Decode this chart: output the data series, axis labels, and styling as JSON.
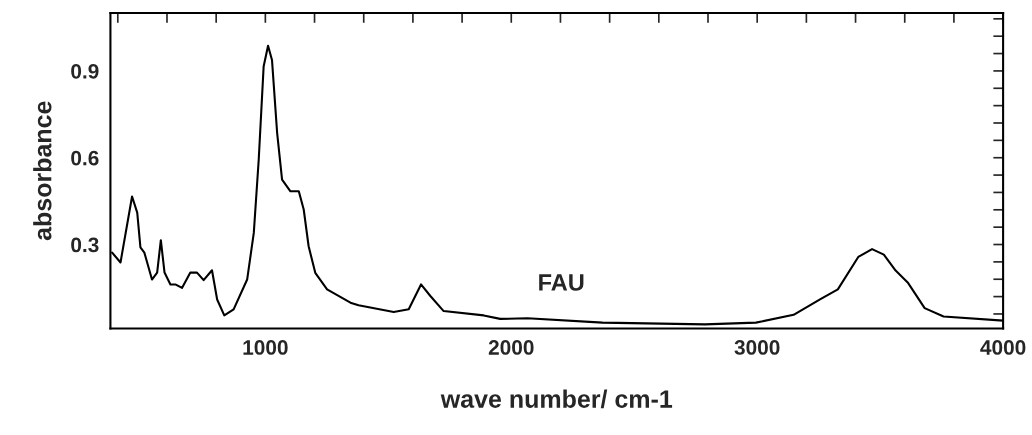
{
  "chart_data": {
    "type": "line",
    "xlabel": "wave number/ cm-1",
    "ylabel": "absorbance",
    "annotations": [
      "FAU"
    ],
    "xlim": [
      370,
      4000
    ],
    "ylim": [
      0.01,
      1.1
    ],
    "xticks": [
      {
        "value": 400,
        "label": null
      },
      {
        "value": 600,
        "label": null
      },
      {
        "value": 800,
        "label": null
      },
      1000,
      {
        "value": 1200,
        "label": null
      },
      {
        "value": 1400,
        "label": null
      },
      {
        "value": 1600,
        "label": null
      },
      {
        "value": 1800,
        "label": null
      },
      2000,
      {
        "value": 2200,
        "label": null
      },
      {
        "value": 2400,
        "label": null
      },
      {
        "value": 2600,
        "label": null
      },
      {
        "value": 2800,
        "label": null
      },
      3000,
      {
        "value": 3200,
        "label": null
      },
      {
        "value": 3400,
        "label": null
      },
      {
        "value": 3600,
        "label": null
      },
      {
        "value": 3800,
        "label": null
      },
      4000
    ],
    "yticks": [
      {
        "value": 0.06,
        "label": null
      },
      {
        "value": 0.12,
        "label": null
      },
      {
        "value": 0.18,
        "label": null
      },
      {
        "value": 0.24,
        "label": null
      },
      0.3,
      {
        "value": 0.36,
        "label": null
      },
      {
        "value": 0.42,
        "label": null
      },
      {
        "value": 0.48,
        "label": null
      },
      {
        "value": 0.54,
        "label": null
      },
      0.6,
      {
        "value": 0.66,
        "label": null
      },
      {
        "value": 0.72,
        "label": null
      },
      {
        "value": 0.78,
        "label": null
      },
      {
        "value": 0.84,
        "label": null
      },
      0.9,
      {
        "value": 0.96,
        "label": null
      },
      {
        "value": 1.02,
        "label": null
      },
      {
        "value": 1.08,
        "label": null
      }
    ],
    "grid": false,
    "legend": false,
    "line_style": "solid",
    "marker": "none",
    "series": [
      {
        "color": "#000000",
        "x": [
          377,
          411,
          458,
          479,
          492,
          508,
          539,
          560,
          575,
          590,
          614,
          634,
          661,
          695,
          722,
          749,
          783,
          804,
          833,
          871,
          926,
          953,
          973,
          993,
          1011,
          1027,
          1048,
          1068,
          1102,
          1136,
          1156,
          1176,
          1203,
          1251,
          1346,
          1379,
          1522,
          1583,
          1633,
          1671,
          1725,
          1888,
          1955,
          2066,
          2371,
          2787,
          2995,
          3148,
          3259,
          3328,
          3411,
          3467,
          3515,
          3563,
          3612,
          3681,
          3758,
          4000
        ],
        "values": [
          0.272,
          0.238,
          0.466,
          0.41,
          0.29,
          0.272,
          0.179,
          0.203,
          0.315,
          0.203,
          0.162,
          0.162,
          0.15,
          0.203,
          0.203,
          0.177,
          0.211,
          0.11,
          0.055,
          0.076,
          0.179,
          0.34,
          0.593,
          0.915,
          0.987,
          0.938,
          0.685,
          0.524,
          0.484,
          0.484,
          0.421,
          0.294,
          0.202,
          0.145,
          0.099,
          0.09,
          0.067,
          0.076,
          0.162,
          0.122,
          0.07,
          0.055,
          0.043,
          0.045,
          0.03,
          0.024,
          0.03,
          0.057,
          0.112,
          0.145,
          0.257,
          0.284,
          0.265,
          0.21,
          0.169,
          0.08,
          0.051,
          0.037
        ]
      }
    ]
  }
}
